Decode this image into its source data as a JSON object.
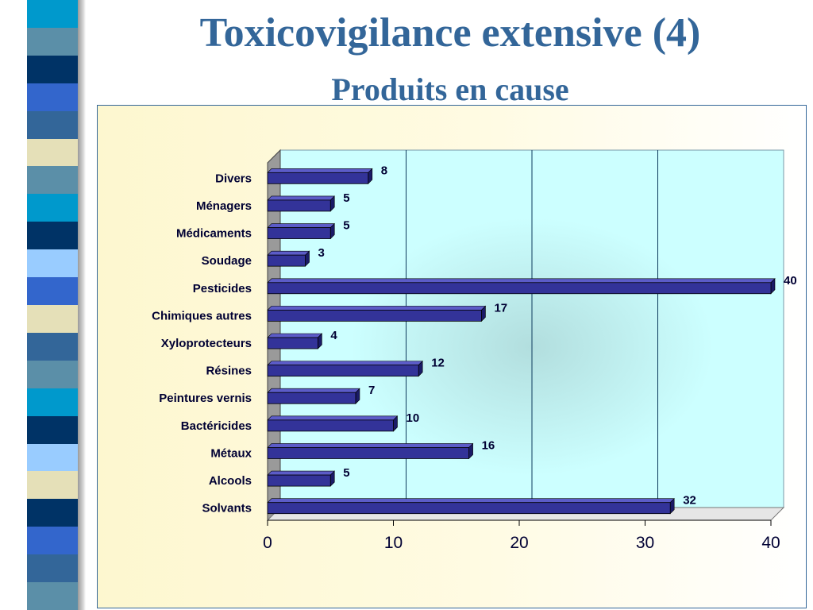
{
  "slide": {
    "title": "Toxicovigilance extensive (4)",
    "subtitle": "Produits en cause"
  },
  "colors": {
    "title": "#336699",
    "bar_front": "#333399",
    "bar_top": "#5c5cc8",
    "bar_side": "#1a1a66",
    "plot_bg": "#ccffff",
    "grid": "#0d3a5c",
    "frame_bg": "#fdf7cf",
    "strip": [
      "#0099cc",
      "#5b8fa8",
      "#003366",
      "#3366cc",
      "#336699",
      "#e5e0b8",
      "#5b8fa8",
      "#0099cc",
      "#003366",
      "#99ccff",
      "#3366cc",
      "#e5e0b8",
      "#336699",
      "#5b8fa8",
      "#0099cc",
      "#003366",
      "#99ccff",
      "#e5e0b8",
      "#003366",
      "#3366cc",
      "#336699",
      "#5b8fa8"
    ]
  },
  "chart_data": {
    "type": "bar",
    "orientation": "horizontal",
    "style": "3d",
    "title": "",
    "xlabel": "",
    "ylabel": "",
    "categories": [
      "Divers",
      "Ménagers",
      "Médicaments",
      "Soudage",
      "Pesticides",
      "Chimiques autres",
      "Xyloprotecteurs",
      "Résines",
      "Peintures vernis",
      "Bactéricides",
      "Métaux",
      "Alcools",
      "Solvants"
    ],
    "values": [
      8,
      5,
      5,
      3,
      40,
      17,
      4,
      12,
      7,
      10,
      16,
      5,
      32
    ],
    "data_labels": [
      "8",
      "5",
      "5",
      "3",
      "40",
      "17",
      "4",
      "12",
      "7",
      "10",
      "16",
      "5",
      "32"
    ],
    "xlim": [
      0,
      40
    ],
    "xticks": [
      "0",
      "10",
      "20",
      "30",
      "40"
    ],
    "grid": "vertical",
    "legend": "none"
  }
}
